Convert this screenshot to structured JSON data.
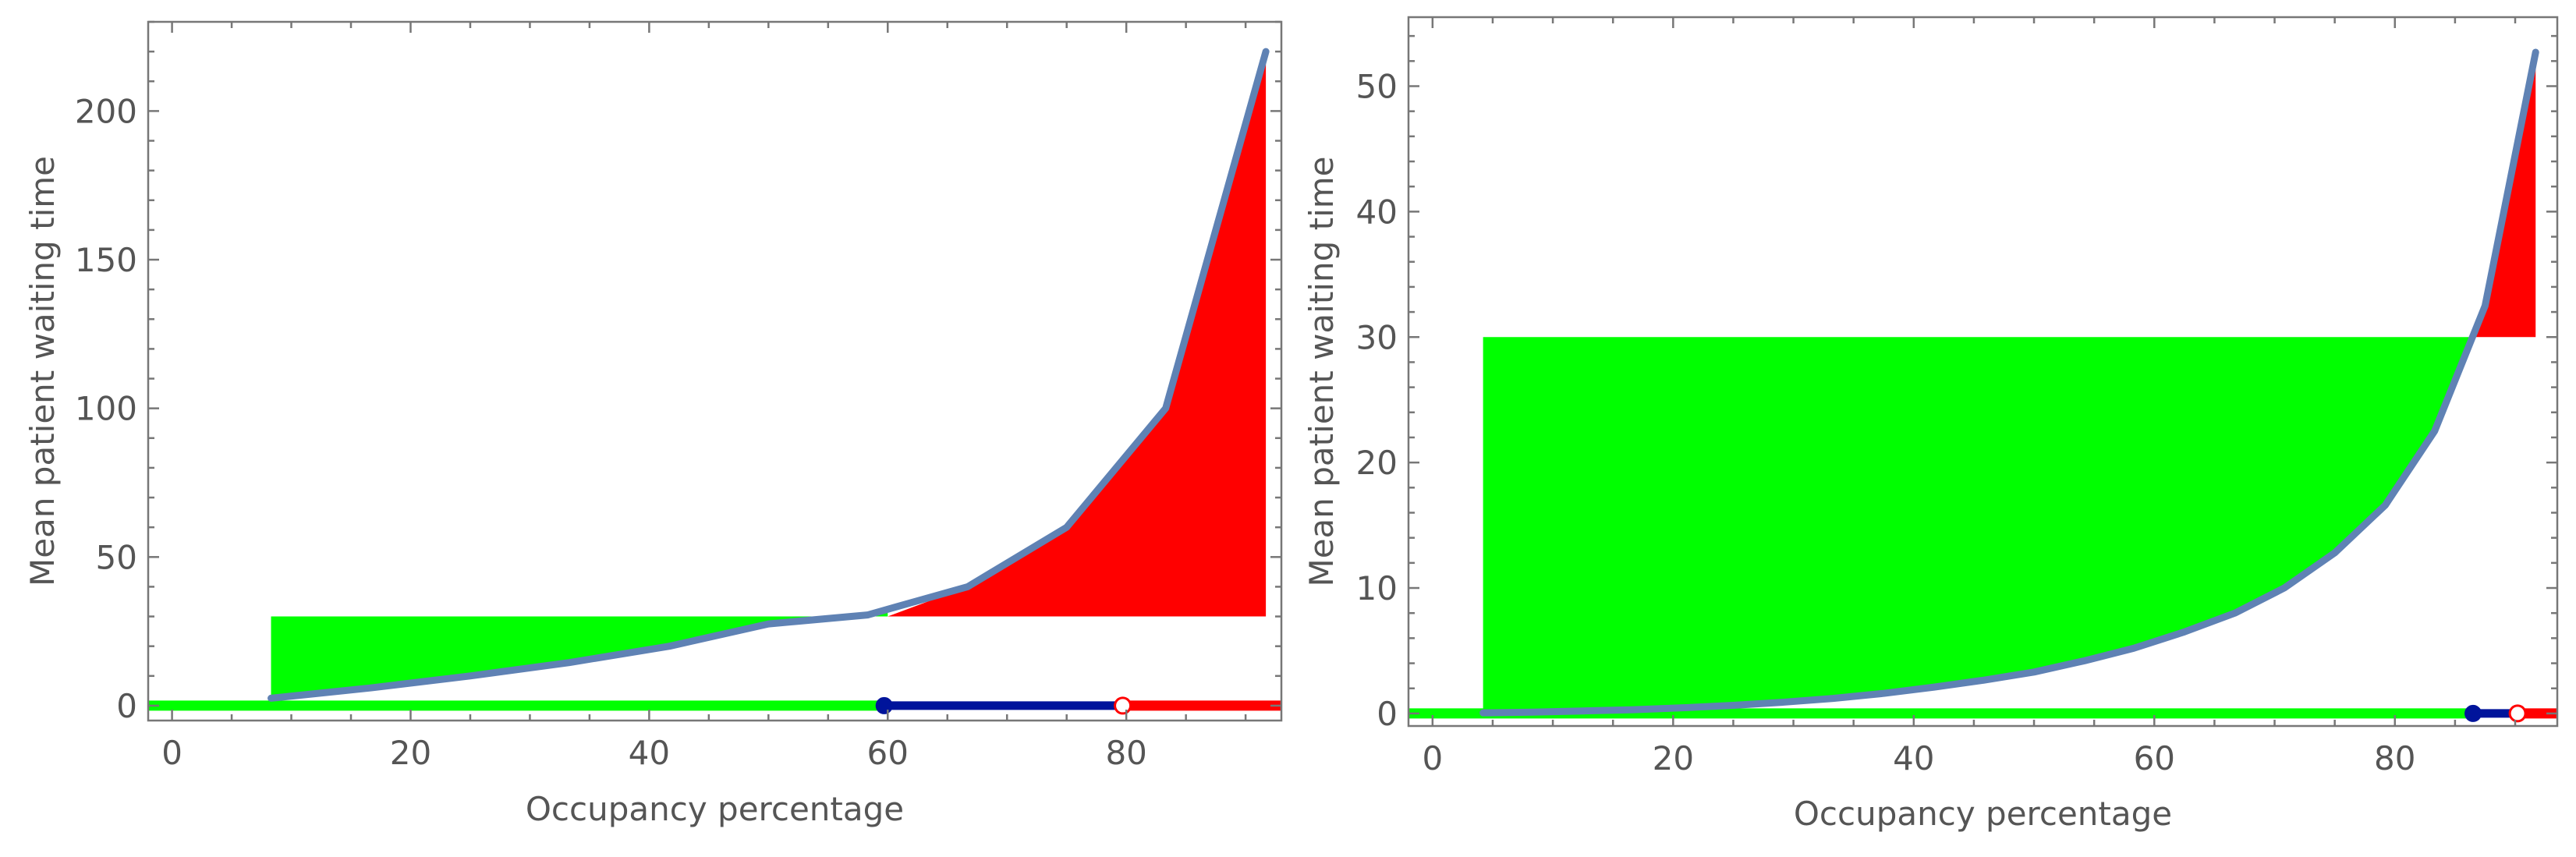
{
  "chart_data": [
    {
      "type": "area",
      "xlabel": "Occupancy percentage",
      "ylabel": "Mean patient waiting time",
      "xlim": [
        -2,
        93
      ],
      "ylim": [
        -5,
        230
      ],
      "xticks": [
        0,
        20,
        40,
        60,
        80
      ],
      "yticks": [
        0,
        50,
        100,
        150,
        200
      ],
      "xtick_labels": [
        "0",
        "20",
        "40",
        "60",
        "80"
      ],
      "ytick_labels": [
        "0",
        "50",
        "100",
        "150",
        "200"
      ],
      "threshold": 30,
      "curve": {
        "x": [
          8.3,
          16.7,
          25,
          33.3,
          41.7,
          50,
          58.3,
          66.7,
          75,
          83.3,
          91.7
        ],
        "y": [
          2.5,
          6,
          10,
          14.5,
          20,
          27.5,
          30.5,
          40,
          60,
          100,
          220
        ]
      },
      "green_region": {
        "x_start": 8.3,
        "x_end": 60,
        "y_top": 30
      },
      "red_region": {
        "x_start": 60,
        "x_end": 91.7,
        "y_bottom": 30
      },
      "indicator_bar": {
        "green_segment": [
          -2,
          59.7
        ],
        "blue_segment": [
          59.7,
          79.7
        ],
        "red_segment": [
          79.7,
          93
        ],
        "filled_dot_x": 59.7,
        "open_dot_x": 79.7
      },
      "colors": {
        "green": "#00ff00",
        "red": "#ff0000",
        "blue": "#00149b",
        "curve": "#5f82b4",
        "text": "#555555"
      }
    },
    {
      "type": "area",
      "xlabel": "Occupancy percentage",
      "ylabel": "Mean patient waiting time",
      "xlim": [
        -2,
        93.5
      ],
      "ylim": [
        -1,
        55.5
      ],
      "xticks": [
        0,
        20,
        40,
        60,
        80
      ],
      "yticks": [
        0,
        10,
        20,
        30,
        40,
        50
      ],
      "xtick_labels": [
        "0",
        "20",
        "40",
        "60",
        "80"
      ],
      "ytick_labels": [
        "0",
        "10",
        "20",
        "30",
        "40",
        "50"
      ],
      "threshold": 30,
      "curve": {
        "x": [
          4.2,
          8.3,
          12.5,
          16.7,
          20.8,
          25,
          29.2,
          33.3,
          37.5,
          41.7,
          45.8,
          50,
          54.2,
          58.3,
          62.5,
          66.7,
          70.8,
          75,
          79.2,
          83.3,
          87.5,
          91.7
        ],
        "y": [
          0.05,
          0.1,
          0.2,
          0.3,
          0.45,
          0.65,
          0.9,
          1.2,
          1.6,
          2.1,
          2.65,
          3.3,
          4.2,
          5.2,
          6.5,
          8.0,
          10.0,
          12.8,
          16.6,
          22.5,
          32.5,
          52.7
        ]
      },
      "green_region": {
        "x_start": 4.2,
        "x_end": 86.2,
        "y_top": 30
      },
      "red_region": {
        "x_start": 86.2,
        "x_end": 91.7,
        "y_bottom": 30
      },
      "indicator_bar": {
        "green_segment": [
          -2,
          86.5
        ],
        "blue_segment": [
          86.5,
          90.2
        ],
        "red_segment": [
          90.2,
          93.5
        ],
        "filled_dot_x": 86.5,
        "open_dot_x": 90.2
      },
      "colors": {
        "green": "#00ff00",
        "red": "#ff0000",
        "blue": "#00149b",
        "curve": "#5f82b4",
        "text": "#555555"
      }
    }
  ]
}
